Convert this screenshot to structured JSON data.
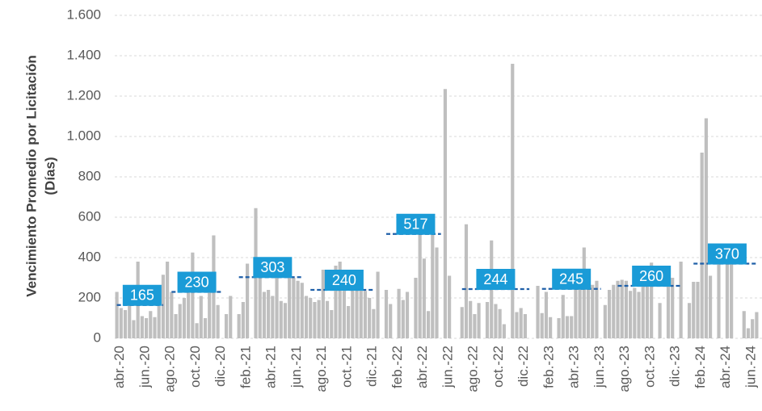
{
  "chart_data": {
    "type": "bar",
    "ylabel": [
      "Vencimiento Promedio por Licitación",
      "(Días)"
    ],
    "color": "#bfbfbf",
    "average_color": "#1f5fa8",
    "average_label_color": "#1a9bd7",
    "grid": true,
    "ylim": [
      0,
      1600
    ],
    "yticks": [
      0,
      200,
      400,
      600,
      800,
      {
        "value": 1000,
        "label": "1.000"
      },
      {
        "value": 1200,
        "label": "1.200"
      },
      {
        "value": 1400,
        "label": "1.400"
      },
      {
        "value": 1600,
        "label": "1.600"
      }
    ],
    "categories": [
      "abr.-20",
      null,
      null,
      null,
      null,
      null,
      "jun.-20",
      null,
      null,
      null,
      null,
      null,
      "ago.-20",
      null,
      null,
      null,
      null,
      null,
      "oct.-20",
      null,
      null,
      null,
      null,
      null,
      "dic.-20",
      null,
      null,
      null,
      null,
      null,
      "feb.-21",
      null,
      null,
      null,
      null,
      null,
      "abr.-21",
      null,
      null,
      null,
      null,
      null,
      "jun.-21",
      null,
      null,
      null,
      null,
      null,
      "ago.-21",
      null,
      null,
      null,
      null,
      null,
      "oct.-21",
      null,
      null,
      null,
      null,
      null,
      "dic.-21",
      null,
      null,
      null,
      null,
      null,
      "feb.-22",
      null,
      null,
      null,
      null,
      null,
      "abr.-22",
      null,
      null,
      null,
      null,
      null,
      "jun.-22",
      null,
      null,
      null,
      null,
      null,
      "ago.-22",
      null,
      null,
      null,
      null,
      null,
      "oct.-22",
      null,
      null,
      null,
      null,
      null,
      "dic.-22",
      null,
      null,
      null,
      null,
      null,
      "feb.-23",
      null,
      null,
      null,
      null,
      null,
      "abr.-23",
      null,
      null,
      null,
      null,
      null,
      "jun.-23",
      null,
      null,
      null,
      null,
      null,
      "ago.-23",
      null,
      null,
      null,
      null,
      null,
      "oct.-23",
      null,
      null,
      null,
      null,
      null,
      "dic.-23",
      null,
      null,
      null,
      null,
      null,
      "feb.-24",
      null,
      null,
      null,
      null,
      null,
      "abr.-24",
      null,
      null,
      null,
      null,
      null,
      "jun.-24",
      null,
      null
    ],
    "values": [
      230,
      150,
      140,
      170,
      90,
      380,
      110,
      100,
      135,
      105,
      160,
      315,
      380,
      230,
      120,
      170,
      200,
      300,
      425,
      75,
      210,
      100,
      230,
      510,
      165,
      0,
      120,
      210,
      0,
      120,
      180,
      370,
      0,
      645,
      300,
      230,
      240,
      210,
      300,
      185,
      175,
      300,
      300,
      285,
      275,
      210,
      200,
      180,
      190,
      340,
      185,
      140,
      360,
      380,
      235,
      160,
      240,
      325,
      240,
      235,
      200,
      145,
      330,
      0,
      240,
      170,
      0,
      245,
      190,
      230,
      0,
      300,
      520,
      395,
      135,
      540,
      450,
      0,
      1235,
      310,
      0,
      0,
      155,
      565,
      185,
      120,
      175,
      0,
      180,
      485,
      170,
      145,
      70,
      0,
      1360,
      130,
      150,
      120,
      0,
      0,
      260,
      125,
      230,
      105,
      0,
      100,
      215,
      110,
      110,
      260,
      270,
      450,
      295,
      265,
      285,
      0,
      165,
      240,
      265,
      285,
      290,
      285,
      235,
      250,
      230,
      290,
      330,
      375,
      0,
      175,
      0,
      280,
      300,
      0,
      380,
      0,
      175,
      280,
      280,
      920,
      1090,
      310,
      0,
      415,
      0,
      455,
      380,
      0,
      0,
      135,
      50,
      95,
      130
    ],
    "average_values": [
      165,
      165,
      165,
      165,
      165,
      165,
      165,
      165,
      165,
      165,
      165,
      165,
      null,
      230,
      230,
      230,
      230,
      230,
      230,
      230,
      230,
      230,
      230,
      230,
      230,
      230,
      null,
      null,
      null,
      303,
      303,
      303,
      303,
      303,
      303,
      303,
      303,
      303,
      303,
      303,
      303,
      303,
      303,
      303,
      303,
      null,
      240,
      240,
      240,
      240,
      240,
      240,
      240,
      240,
      240,
      240,
      240,
      240,
      240,
      240,
      240,
      240,
      null,
      null,
      517,
      517,
      517,
      517,
      517,
      517,
      517,
      517,
      517,
      517,
      517,
      517,
      517,
      517,
      null,
      null,
      null,
      null,
      244,
      244,
      244,
      244,
      244,
      244,
      244,
      244,
      244,
      244,
      244,
      244,
      244,
      244,
      244,
      244,
      244,
      null,
      null,
      245,
      245,
      245,
      245,
      245,
      245,
      245,
      245,
      245,
      245,
      245,
      245,
      245,
      245,
      245,
      null,
      null,
      null,
      260,
      260,
      260,
      260,
      260,
      260,
      260,
      260,
      260,
      260,
      260,
      260,
      260,
      260,
      260,
      260,
      null,
      null,
      370,
      370,
      370,
      370,
      370,
      370,
      370,
      370,
      370,
      370,
      370,
      370,
      370,
      370,
      370,
      370
    ]
  }
}
